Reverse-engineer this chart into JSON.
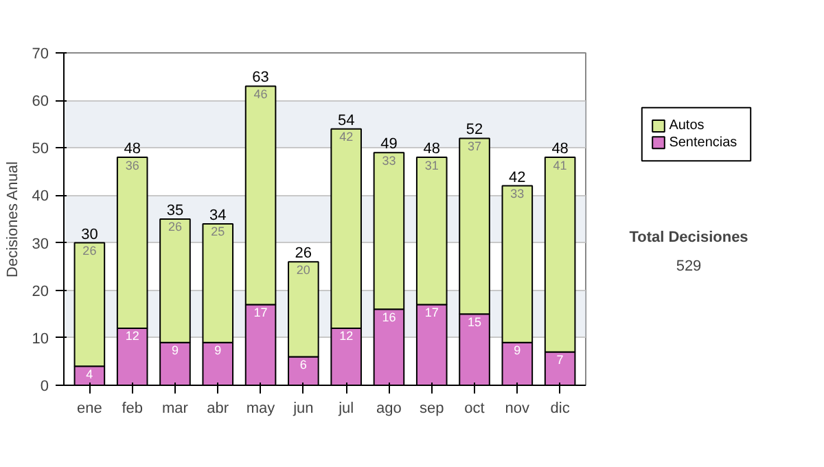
{
  "chart_data": {
    "type": "bar",
    "stacked": true,
    "ylabel": "Decisiones Anual",
    "categories": [
      "ene",
      "feb",
      "mar",
      "abr",
      "may",
      "jun",
      "jul",
      "ago",
      "sep",
      "oct",
      "nov",
      "dic"
    ],
    "series": [
      {
        "name": "Sentencias",
        "color": "#d878c8",
        "values": [
          4,
          12,
          9,
          9,
          17,
          6,
          12,
          16,
          17,
          15,
          9,
          7
        ]
      },
      {
        "name": "Autos",
        "color": "#d8ec98",
        "values": [
          26,
          36,
          26,
          25,
          46,
          20,
          42,
          33,
          31,
          37,
          33,
          41
        ]
      }
    ],
    "data_labels": true,
    "totals": [
      "30",
      "48",
      "35",
      "34",
      "63",
      "26",
      "54",
      "49",
      "48",
      "52",
      "42",
      "48"
    ],
    "ylim": [
      0,
      70
    ],
    "yticks": [
      0,
      10,
      20,
      30,
      40,
      50,
      60,
      70
    ],
    "grid": "y",
    "legend": "right",
    "annotations": [
      "Total Decisiones",
      "529"
    ]
  }
}
